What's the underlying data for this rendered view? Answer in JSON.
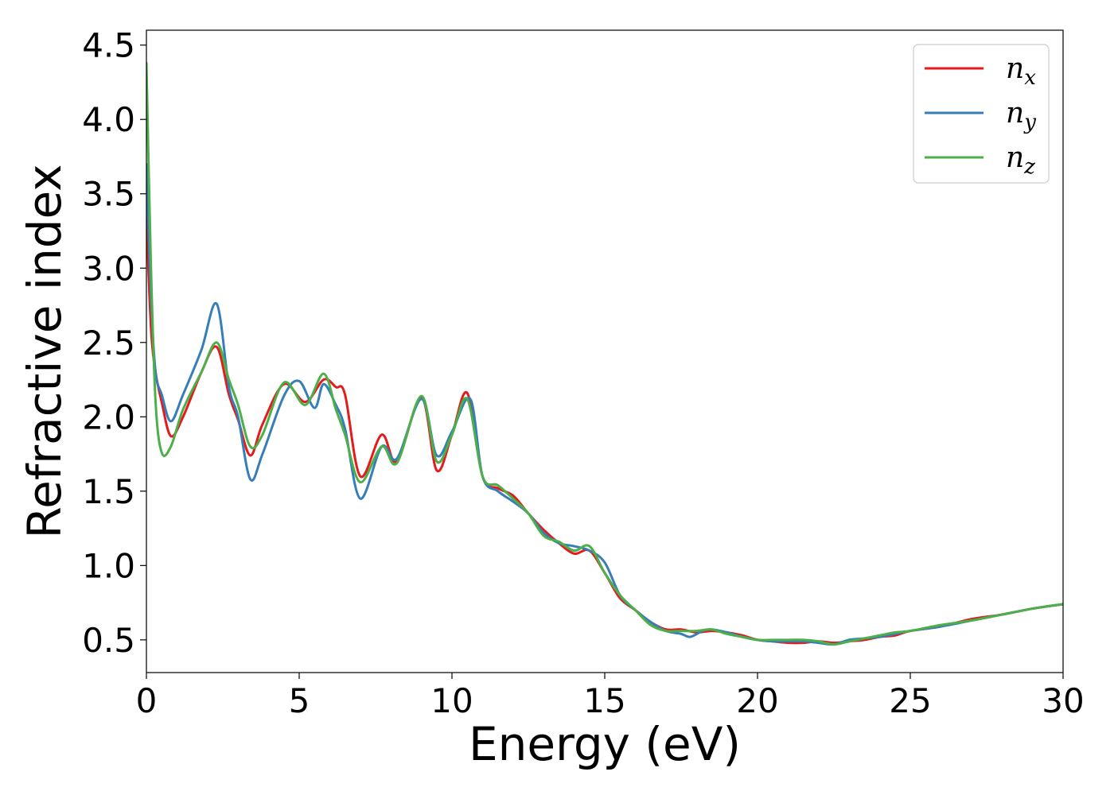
{
  "chart_data": {
    "type": "line",
    "title": "",
    "xlabel": "Energy (eV)",
    "ylabel": "Refractive index",
    "xlim": [
      0,
      30
    ],
    "ylim": [
      0.28,
      4.6
    ],
    "xticks": [
      0,
      5,
      10,
      15,
      20,
      25,
      30
    ],
    "yticks": [
      0.5,
      1.0,
      1.5,
      2.0,
      2.5,
      3.0,
      3.5,
      4.0,
      4.5
    ],
    "xtick_labels": [
      "0",
      "5",
      "10",
      "15",
      "20",
      "25",
      "30"
    ],
    "ytick_labels": [
      "0.5",
      "1.0",
      "1.5",
      "2.0",
      "2.5",
      "3.0",
      "3.5",
      "4.0",
      "4.5"
    ],
    "grid": false,
    "legend_position": "top-right",
    "series": [
      {
        "name": "n",
        "subscript": "x",
        "color": "#e41a1c",
        "x": [
          0,
          0.15,
          0.3,
          0.5,
          0.8,
          1.2,
          1.8,
          2.3,
          2.7,
          3.0,
          3.4,
          3.8,
          4.5,
          5.2,
          5.8,
          6.2,
          6.5,
          7.0,
          7.7,
          8.2,
          9.0,
          9.5,
          10.0,
          10.5,
          11.0,
          11.5,
          12.0,
          12.5,
          13.0,
          13.5,
          14.0,
          14.5,
          15.0,
          15.5,
          16.0,
          16.5,
          17.0,
          17.5,
          18.0,
          18.5,
          19.0,
          19.5,
          20.0,
          20.5,
          21.0,
          21.5,
          22.0,
          22.5,
          23.0,
          23.5,
          24.0,
          24.5,
          25.0,
          26.0,
          27.0,
          28.0,
          29.0,
          30.0
        ],
        "y": [
          3.35,
          2.6,
          2.3,
          2.1,
          1.87,
          2.0,
          2.3,
          2.47,
          2.15,
          1.98,
          1.74,
          1.95,
          2.22,
          2.1,
          2.25,
          2.2,
          2.15,
          1.6,
          1.88,
          1.7,
          2.13,
          1.64,
          1.88,
          2.16,
          1.6,
          1.52,
          1.47,
          1.35,
          1.24,
          1.15,
          1.08,
          1.1,
          0.95,
          0.78,
          0.7,
          0.62,
          0.57,
          0.57,
          0.55,
          0.56,
          0.55,
          0.53,
          0.5,
          0.49,
          0.48,
          0.48,
          0.49,
          0.48,
          0.49,
          0.5,
          0.52,
          0.53,
          0.56,
          0.59,
          0.64,
          0.67,
          0.71,
          0.74
        ]
      },
      {
        "name": "n",
        "subscript": "y",
        "color": "#377eb8",
        "x": [
          0,
          0.15,
          0.3,
          0.5,
          0.8,
          1.2,
          1.8,
          2.3,
          2.7,
          3.0,
          3.4,
          3.8,
          4.5,
          5.0,
          5.5,
          5.8,
          6.2,
          6.5,
          7.0,
          7.7,
          8.2,
          9.0,
          9.5,
          10.0,
          10.6,
          11.0,
          11.5,
          12.0,
          12.5,
          13.0,
          13.5,
          14.0,
          14.5,
          15.0,
          15.5,
          16.0,
          16.5,
          17.0,
          17.5,
          17.8,
          18.2,
          18.5,
          19.0,
          19.5,
          20.0,
          20.5,
          21.0,
          21.5,
          22.0,
          22.5,
          23.0,
          23.5,
          24.0,
          24.5,
          25.0,
          26.0,
          27.0,
          28.0,
          29.0,
          30.0
        ],
        "y": [
          3.7,
          2.8,
          2.3,
          2.15,
          1.97,
          2.15,
          2.45,
          2.76,
          2.2,
          2.0,
          1.58,
          1.75,
          2.14,
          2.24,
          2.06,
          2.22,
          2.08,
          1.92,
          1.45,
          1.8,
          1.72,
          2.12,
          1.74,
          1.9,
          2.12,
          1.6,
          1.5,
          1.43,
          1.35,
          1.22,
          1.15,
          1.13,
          1.1,
          1.02,
          0.8,
          0.7,
          0.62,
          0.56,
          0.54,
          0.52,
          0.56,
          0.57,
          0.55,
          0.52,
          0.5,
          0.49,
          0.49,
          0.49,
          0.48,
          0.47,
          0.5,
          0.51,
          0.52,
          0.54,
          0.56,
          0.59,
          0.63,
          0.67,
          0.71,
          0.74
        ]
      },
      {
        "name": "n",
        "subscript": "z",
        "color": "#4daf4a",
        "x": [
          0,
          0.15,
          0.3,
          0.5,
          0.8,
          1.2,
          1.8,
          2.3,
          2.7,
          3.0,
          3.4,
          3.8,
          4.5,
          5.2,
          5.8,
          6.2,
          6.5,
          7.0,
          7.7,
          8.2,
          9.0,
          9.5,
          10.0,
          10.5,
          11.0,
          11.5,
          12.0,
          12.5,
          13.0,
          13.5,
          14.0,
          14.5,
          15.0,
          15.5,
          16.0,
          16.5,
          17.0,
          17.5,
          18.0,
          18.5,
          19.0,
          19.5,
          20.0,
          20.5,
          21.0,
          21.5,
          22.0,
          22.5,
          23.0,
          23.5,
          24.0,
          24.5,
          25.0,
          26.0,
          27.0,
          28.0,
          29.0,
          30.0
        ],
        "y": [
          4.38,
          3.0,
          2.1,
          1.76,
          1.8,
          2.05,
          2.3,
          2.5,
          2.25,
          2.08,
          1.8,
          1.88,
          2.23,
          2.08,
          2.29,
          2.05,
          1.88,
          1.56,
          1.8,
          1.69,
          2.14,
          1.7,
          1.88,
          2.12,
          1.6,
          1.54,
          1.45,
          1.35,
          1.2,
          1.16,
          1.1,
          1.13,
          0.95,
          0.8,
          0.7,
          0.6,
          0.56,
          0.56,
          0.56,
          0.57,
          0.54,
          0.52,
          0.5,
          0.5,
          0.5,
          0.5,
          0.49,
          0.47,
          0.49,
          0.51,
          0.53,
          0.55,
          0.56,
          0.6,
          0.63,
          0.67,
          0.71,
          0.74
        ]
      }
    ]
  }
}
